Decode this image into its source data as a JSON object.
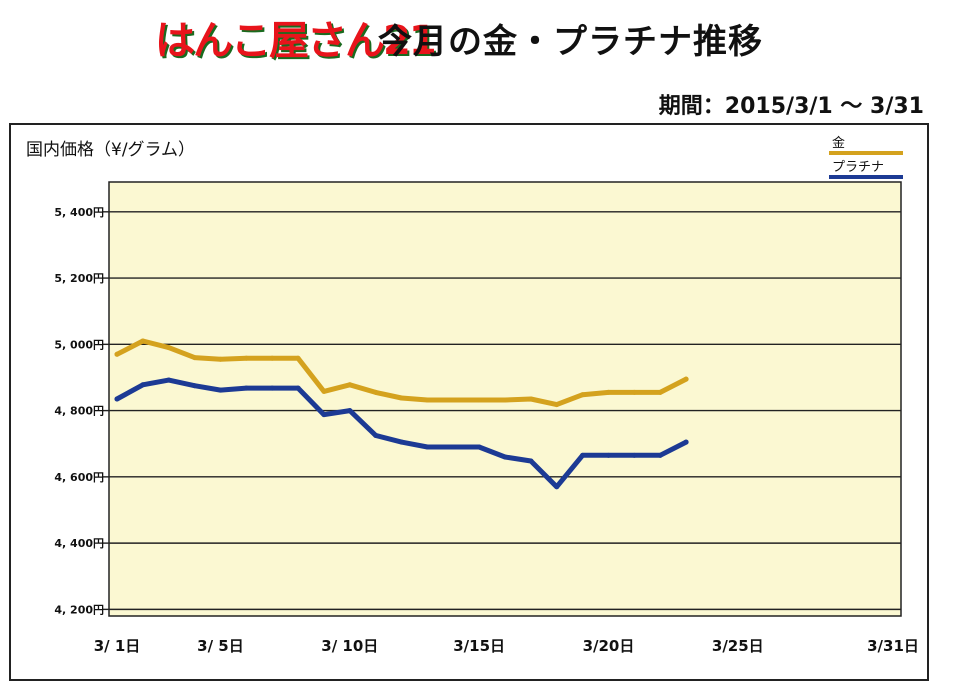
{
  "header": {
    "logo_text": "はんこ屋さん21",
    "title": "今月の金・プラチナ推移",
    "period": "期間：2015/3/1 〜 3/31"
  },
  "colors": {
    "plot_background": "#fbf8d2",
    "gold": "#d4a21e",
    "platinum": "#1c3a94",
    "grid": "#222222"
  },
  "chart_data": {
    "type": "line",
    "title": "国内価格（¥/グラム）",
    "xlabel": "",
    "ylabel": "国内価格（¥/グラム）",
    "x_ticks": [
      {
        "day": 1,
        "label": "3/ 1日"
      },
      {
        "day": 5,
        "label": "3/ 5日"
      },
      {
        "day": 10,
        "label": "3/ 10日"
      },
      {
        "day": 15,
        "label": "3/15日"
      },
      {
        "day": 20,
        "label": "3/20日"
      },
      {
        "day": 25,
        "label": "3/25日"
      },
      {
        "day": 31,
        "label": "3/31日"
      }
    ],
    "xlim": [
      1,
      31
    ],
    "y_ticks": [
      {
        "value": 4200,
        "label": "4, 200円"
      },
      {
        "value": 4400,
        "label": "4, 400円"
      },
      {
        "value": 4600,
        "label": "4, 600円"
      },
      {
        "value": 4800,
        "label": "4, 800円"
      },
      {
        "value": 5000,
        "label": "5, 000円"
      },
      {
        "value": 5200,
        "label": "5, 200円"
      },
      {
        "value": 5400,
        "label": "5, 400円"
      }
    ],
    "ylim": [
      4180,
      5490
    ],
    "grid": true,
    "legend_position": "top-right",
    "series": [
      {
        "name": "金",
        "color": "#d4a21e",
        "x": [
          1,
          2,
          3,
          4,
          5,
          6,
          7,
          8,
          9,
          10,
          11,
          12,
          13,
          14,
          15,
          16,
          17,
          18,
          19,
          20,
          21,
          22,
          23
        ],
        "y": [
          4970,
          5010,
          4990,
          4960,
          4955,
          4958,
          4958,
          4958,
          4858,
          4878,
          4855,
          4838,
          4832,
          4832,
          4832,
          4832,
          4835,
          4818,
          4848,
          4855,
          4855,
          4855,
          4895
        ]
      },
      {
        "name": "プラチナ",
        "color": "#1c3a94",
        "x": [
          1,
          2,
          3,
          4,
          5,
          6,
          7,
          8,
          9,
          10,
          11,
          12,
          13,
          14,
          15,
          16,
          17,
          18,
          19,
          20,
          21,
          22,
          23
        ],
        "y": [
          4835,
          4878,
          4892,
          4875,
          4862,
          4868,
          4868,
          4868,
          4788,
          4800,
          4725,
          4705,
          4690,
          4690,
          4690,
          4660,
          4648,
          4570,
          4665,
          4665,
          4665,
          4665,
          4705
        ]
      }
    ]
  }
}
